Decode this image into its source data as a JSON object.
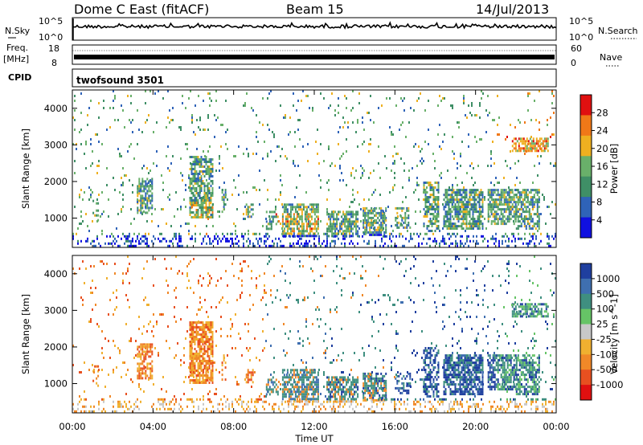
{
  "header": {
    "radar": "Dome C East (fitACF)",
    "beam": "Beam 15",
    "date": "14/Jul/2013"
  },
  "strips": {
    "nsky_label": "N.Sky",
    "nsky_top": "10^5",
    "nsky_bottom": "10^0",
    "nsearch_label": "N.Search",
    "nsearch_top": "10^5",
    "nsearch_bottom": "10^0",
    "freq_label": "Freq.",
    "freq_unit": "[MHz]",
    "freq_top": "18",
    "freq_bottom": "8",
    "nave_label": "Nave",
    "nave_top": "60",
    "nave_bottom": "0",
    "cpid_label": "CPID",
    "cpid_value": "twofsound 3501"
  },
  "chart_data": [
    {
      "type": "heatmap",
      "name": "Power",
      "ylabel": "Slant Range [km]",
      "ylim": [
        200,
        4500
      ],
      "yticks": [
        "1000",
        "2000",
        "3000",
        "4000"
      ],
      "colorbar_label": "Power [dB]",
      "colorbar_ticks": [
        "4",
        "8",
        "12",
        "16",
        "20",
        "24",
        "28"
      ],
      "colorbar_range": [
        0,
        32
      ],
      "colors": [
        "#1010e0",
        "#2f63b8",
        "#3f8f66",
        "#69b06a",
        "#eeb020",
        "#f07818",
        "#e01010"
      ]
    },
    {
      "type": "heatmap",
      "name": "Velocity",
      "ylabel": "Slant Range [km]",
      "ylim": [
        200,
        4500
      ],
      "yticks": [
        "1000",
        "2000",
        "3000",
        "4000"
      ],
      "colorbar_label": "Velocity [m s^-1]",
      "colorbar_ticks": [
        "1000",
        "500",
        "100",
        "25",
        "-25",
        "-100",
        "-500",
        "-1000"
      ],
      "colors": [
        "#1f3f9f",
        "#3f6fb0",
        "#3f8f80",
        "#66c466",
        "#c8c8c8",
        "#f0b030",
        "#f08828",
        "#e85020",
        "#e01010"
      ]
    }
  ],
  "time_axis": {
    "xlabel": "Time UT",
    "ticks": [
      "00:00",
      "04:00",
      "08:00",
      "12:00",
      "16:00",
      "20:00",
      "00:00"
    ],
    "xlim_hours": [
      0,
      24
    ]
  }
}
